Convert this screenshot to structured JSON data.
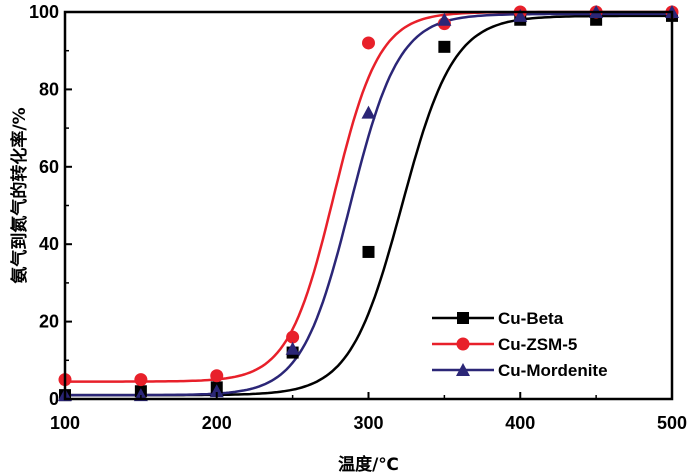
{
  "chart_data": {
    "type": "scatter",
    "xlabel": "温度/℃",
    "ylabel": "氨气到氮气的转化率/%",
    "xlim": [
      100,
      500
    ],
    "ylim": [
      0,
      100
    ],
    "xticks": [
      100,
      200,
      300,
      400,
      500
    ],
    "yticks": [
      0,
      20,
      40,
      60,
      80,
      100
    ],
    "x_tick_labels": [
      "100",
      "200",
      "300",
      "400",
      "500"
    ],
    "y_tick_labels": [
      "0",
      "20",
      "40",
      "60",
      "80",
      "100"
    ],
    "grid": false,
    "legend_position": "bottom-right",
    "series": [
      {
        "name": "Cu-Beta",
        "marker": "square",
        "color": "#000000",
        "x": [
          100,
          150,
          200,
          250,
          300,
          350,
          400,
          450,
          500
        ],
        "y": [
          1,
          2,
          3,
          12,
          38,
          91,
          98,
          98,
          99
        ],
        "curve": {
          "floor": 1,
          "ceiling": 99,
          "midpoint": 322,
          "scale": 17
        }
      },
      {
        "name": "Cu-ZSM-5",
        "marker": "circle",
        "color": "#e8202a",
        "x": [
          100,
          150,
          200,
          250,
          300,
          350,
          400,
          450,
          500
        ],
        "y": [
          5,
          5,
          6,
          16,
          92,
          97,
          100,
          100,
          100
        ],
        "curve": {
          "floor": 4.5,
          "ceiling": 100,
          "midpoint": 277,
          "scale": 15
        }
      },
      {
        "name": "Cu-Mordenite",
        "marker": "triangle",
        "color": "#2b2677",
        "x": [
          100,
          150,
          200,
          250,
          300,
          350,
          400,
          450,
          500
        ],
        "y": [
          1,
          1,
          2,
          13,
          74,
          98,
          99,
          100,
          100
        ],
        "curve": {
          "floor": 1,
          "ceiling": 99.5,
          "midpoint": 288,
          "scale": 16
        }
      }
    ]
  }
}
